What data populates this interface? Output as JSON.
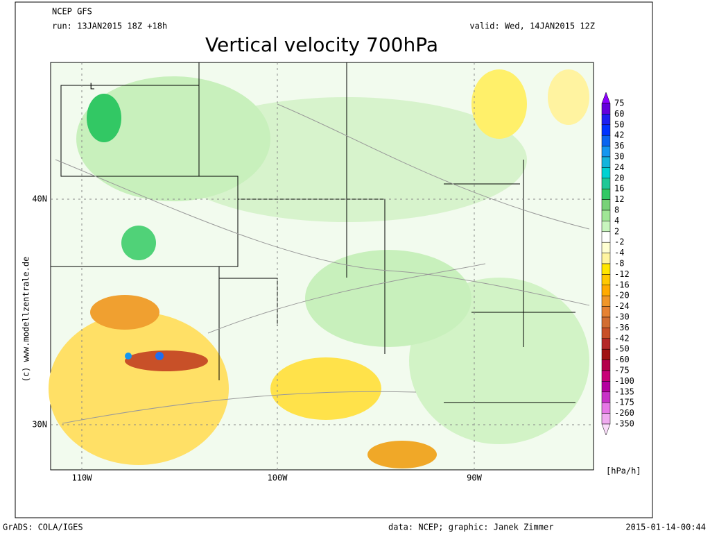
{
  "header": {
    "model": "NCEP GFS",
    "run": "run: 13JAN2015 18Z +18h",
    "valid": "valid: Wed, 14JAN2015 12Z",
    "title": "Vertical velocity 700hPa"
  },
  "watermark": "(c) www.modellzentrale.de",
  "axes": {
    "x_labels": [
      "110W",
      "100W",
      "90W"
    ],
    "y_labels": [
      "40N",
      "30N"
    ],
    "low_marker": "L"
  },
  "colorbar": {
    "levels": [
      "75",
      "60",
      "50",
      "42",
      "36",
      "30",
      "24",
      "20",
      "16",
      "12",
      "8",
      "4",
      "2",
      "-2",
      "-4",
      "-8",
      "-12",
      "-16",
      "-20",
      "-24",
      "-30",
      "-36",
      "-42",
      "-50",
      "-60",
      "-75",
      "-100",
      "-135",
      "-175",
      "-260",
      "-350"
    ],
    "colors": [
      "#8c00ff",
      "#6400dc",
      "#1e1ef0",
      "#0032ff",
      "#0a64f0",
      "#1496f0",
      "#14b4dc",
      "#00d2d2",
      "#1ec896",
      "#32c864",
      "#78d278",
      "#a0e696",
      "#c8f5be",
      "#ffffff",
      "#ffffd2",
      "#fff5a0",
      "#ffe600",
      "#ffc800",
      "#ffaa00",
      "#f09628",
      "#e68232",
      "#d26e32",
      "#c85028",
      "#b42828",
      "#a01414",
      "#b4004b",
      "#c80078",
      "#b400a0",
      "#c832c8",
      "#e678e6",
      "#f0aaf0",
      "#fadcfa"
    ],
    "unit": "[hPa/h]"
  },
  "footer": {
    "left": "GrADS: COLA/IGES",
    "center": "data: NCEP; graphic: Janek Zimmer",
    "right": "2015-01-14-00:44"
  }
}
